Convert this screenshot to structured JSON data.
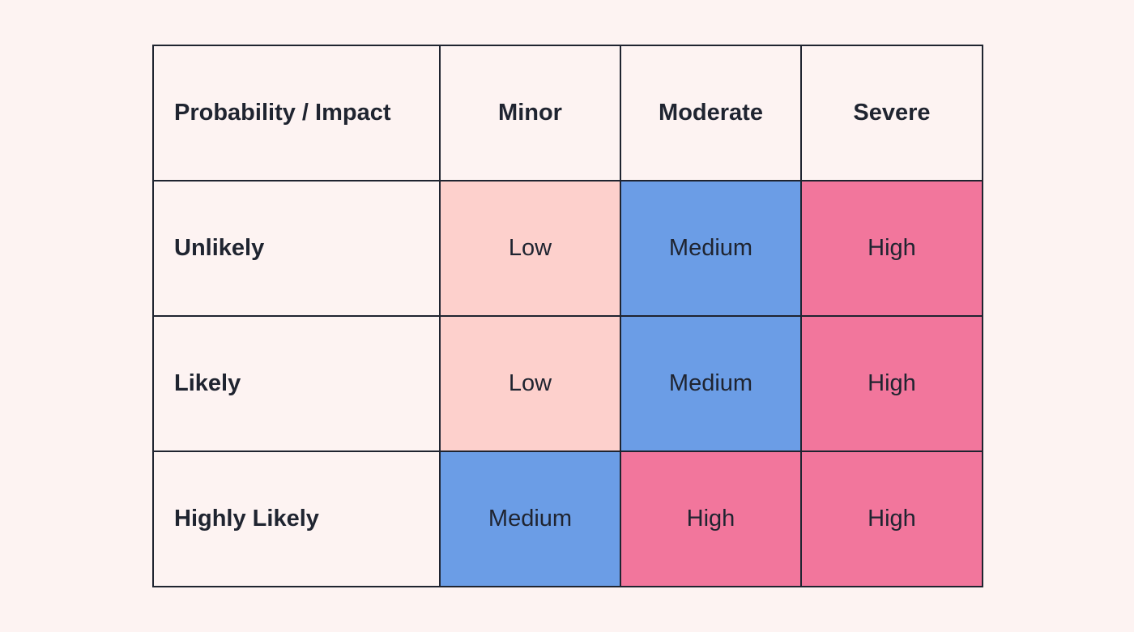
{
  "matrix": {
    "corner_label": "Probability / Impact",
    "columns": [
      "Minor",
      "Moderate",
      "Severe"
    ],
    "rows": [
      {
        "label": "Unlikely",
        "cells": [
          "Low",
          "Medium",
          "High"
        ]
      },
      {
        "label": "Likely",
        "cells": [
          "Low",
          "Medium",
          "High"
        ]
      },
      {
        "label": "Highly Likely",
        "cells": [
          "Medium",
          "High",
          "High"
        ]
      }
    ]
  },
  "colors": {
    "background": "#fdf3f2",
    "border": "#1f2430",
    "low": "#fdd0cc",
    "medium": "#6b9de6",
    "high": "#f2769c"
  }
}
